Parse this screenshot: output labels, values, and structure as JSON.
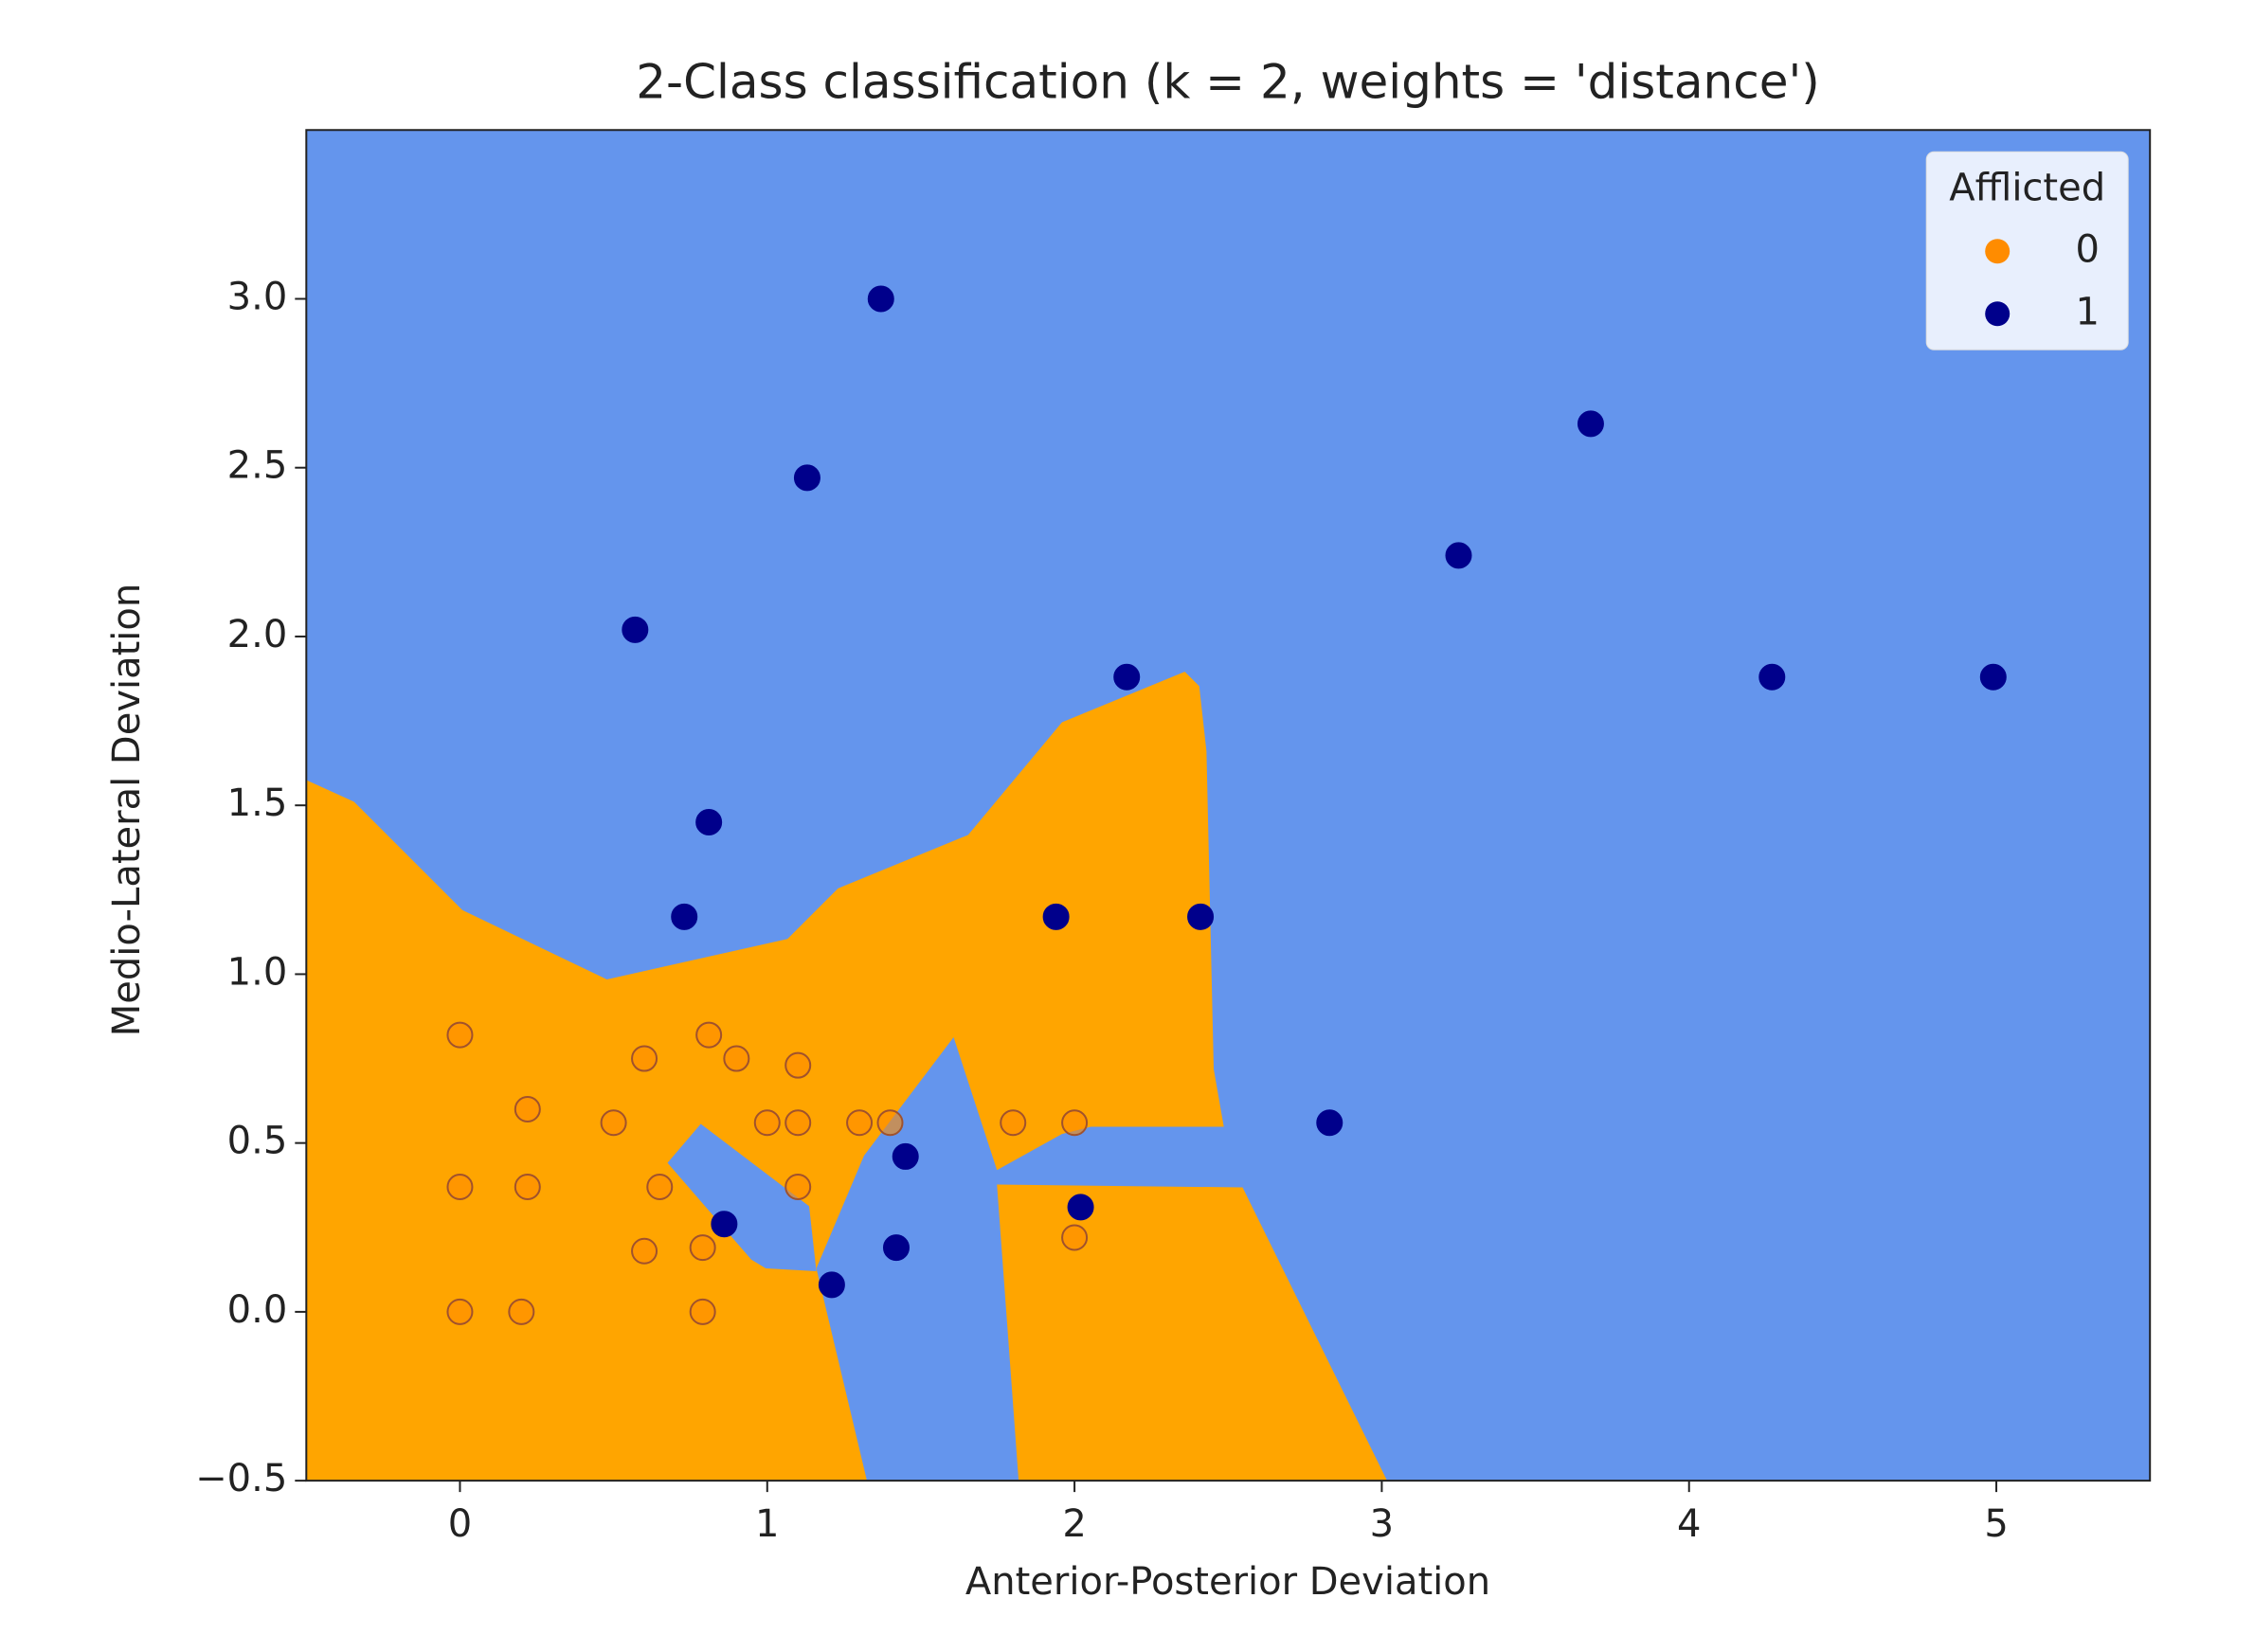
{
  "chart_data": {
    "type": "scatter",
    "title": "2-Class classification (k = 2, weights = 'distance')",
    "x_label": "Anterior-Posterior Deviation",
    "y_label": "Medio-Lateral Deviation",
    "xlim": [
      -0.5,
      5.5
    ],
    "ylim": [
      -0.5,
      3.5
    ],
    "xticks": [
      0,
      1,
      2,
      3,
      4,
      5
    ],
    "yticks": [
      {
        "value": -0.5,
        "label": "−0.5"
      },
      {
        "value": 0,
        "label": "0.0"
      },
      0.5,
      {
        "value": 1,
        "label": "1.0"
      },
      1.5,
      {
        "value": 2,
        "label": "2.0"
      },
      2.5,
      {
        "value": 3,
        "label": "3.0"
      }
    ],
    "region_colors": [
      "#ffa500",
      "#6495ed"
    ],
    "legend_title": "Afflicted",
    "legend": "upper right",
    "series": [
      {
        "name": "0",
        "color": "#ff8c00",
        "x": [
          0,
          0,
          0,
          0.22,
          0.22,
          0.2,
          0.5,
          0.6,
          0.65,
          0.6,
          0.79,
          0.79,
          0.81,
          0.9,
          1.0,
          1.1,
          1.1,
          1.1,
          1.3,
          1.4,
          1.8,
          2.0,
          2.0
        ],
        "values": [
          0.82,
          0.37,
          0,
          0.6,
          0.37,
          0,
          0.56,
          0.75,
          0.37,
          0.18,
          0.19,
          0,
          0.82,
          0.75,
          0.56,
          0.56,
          0.73,
          0.37,
          0.56,
          0.56,
          0.56,
          0.56,
          0.22
        ]
      },
      {
        "name": "1",
        "color": "#00008b",
        "x": [
          1.37,
          1.13,
          0.57,
          0.81,
          0.73,
          1.94,
          2.41,
          2.17,
          3.25,
          3.68,
          4.27,
          4.99,
          2.83,
          1.45,
          0.86,
          1.21,
          1.42,
          2.02
        ],
        "values": [
          3.0,
          2.47,
          2.02,
          1.45,
          1.17,
          1.17,
          1.17,
          1.88,
          2.24,
          2.63,
          1.88,
          1.88,
          0.56,
          0.46,
          0.26,
          0.08,
          0.19,
          0.31
        ]
      }
    ]
  }
}
